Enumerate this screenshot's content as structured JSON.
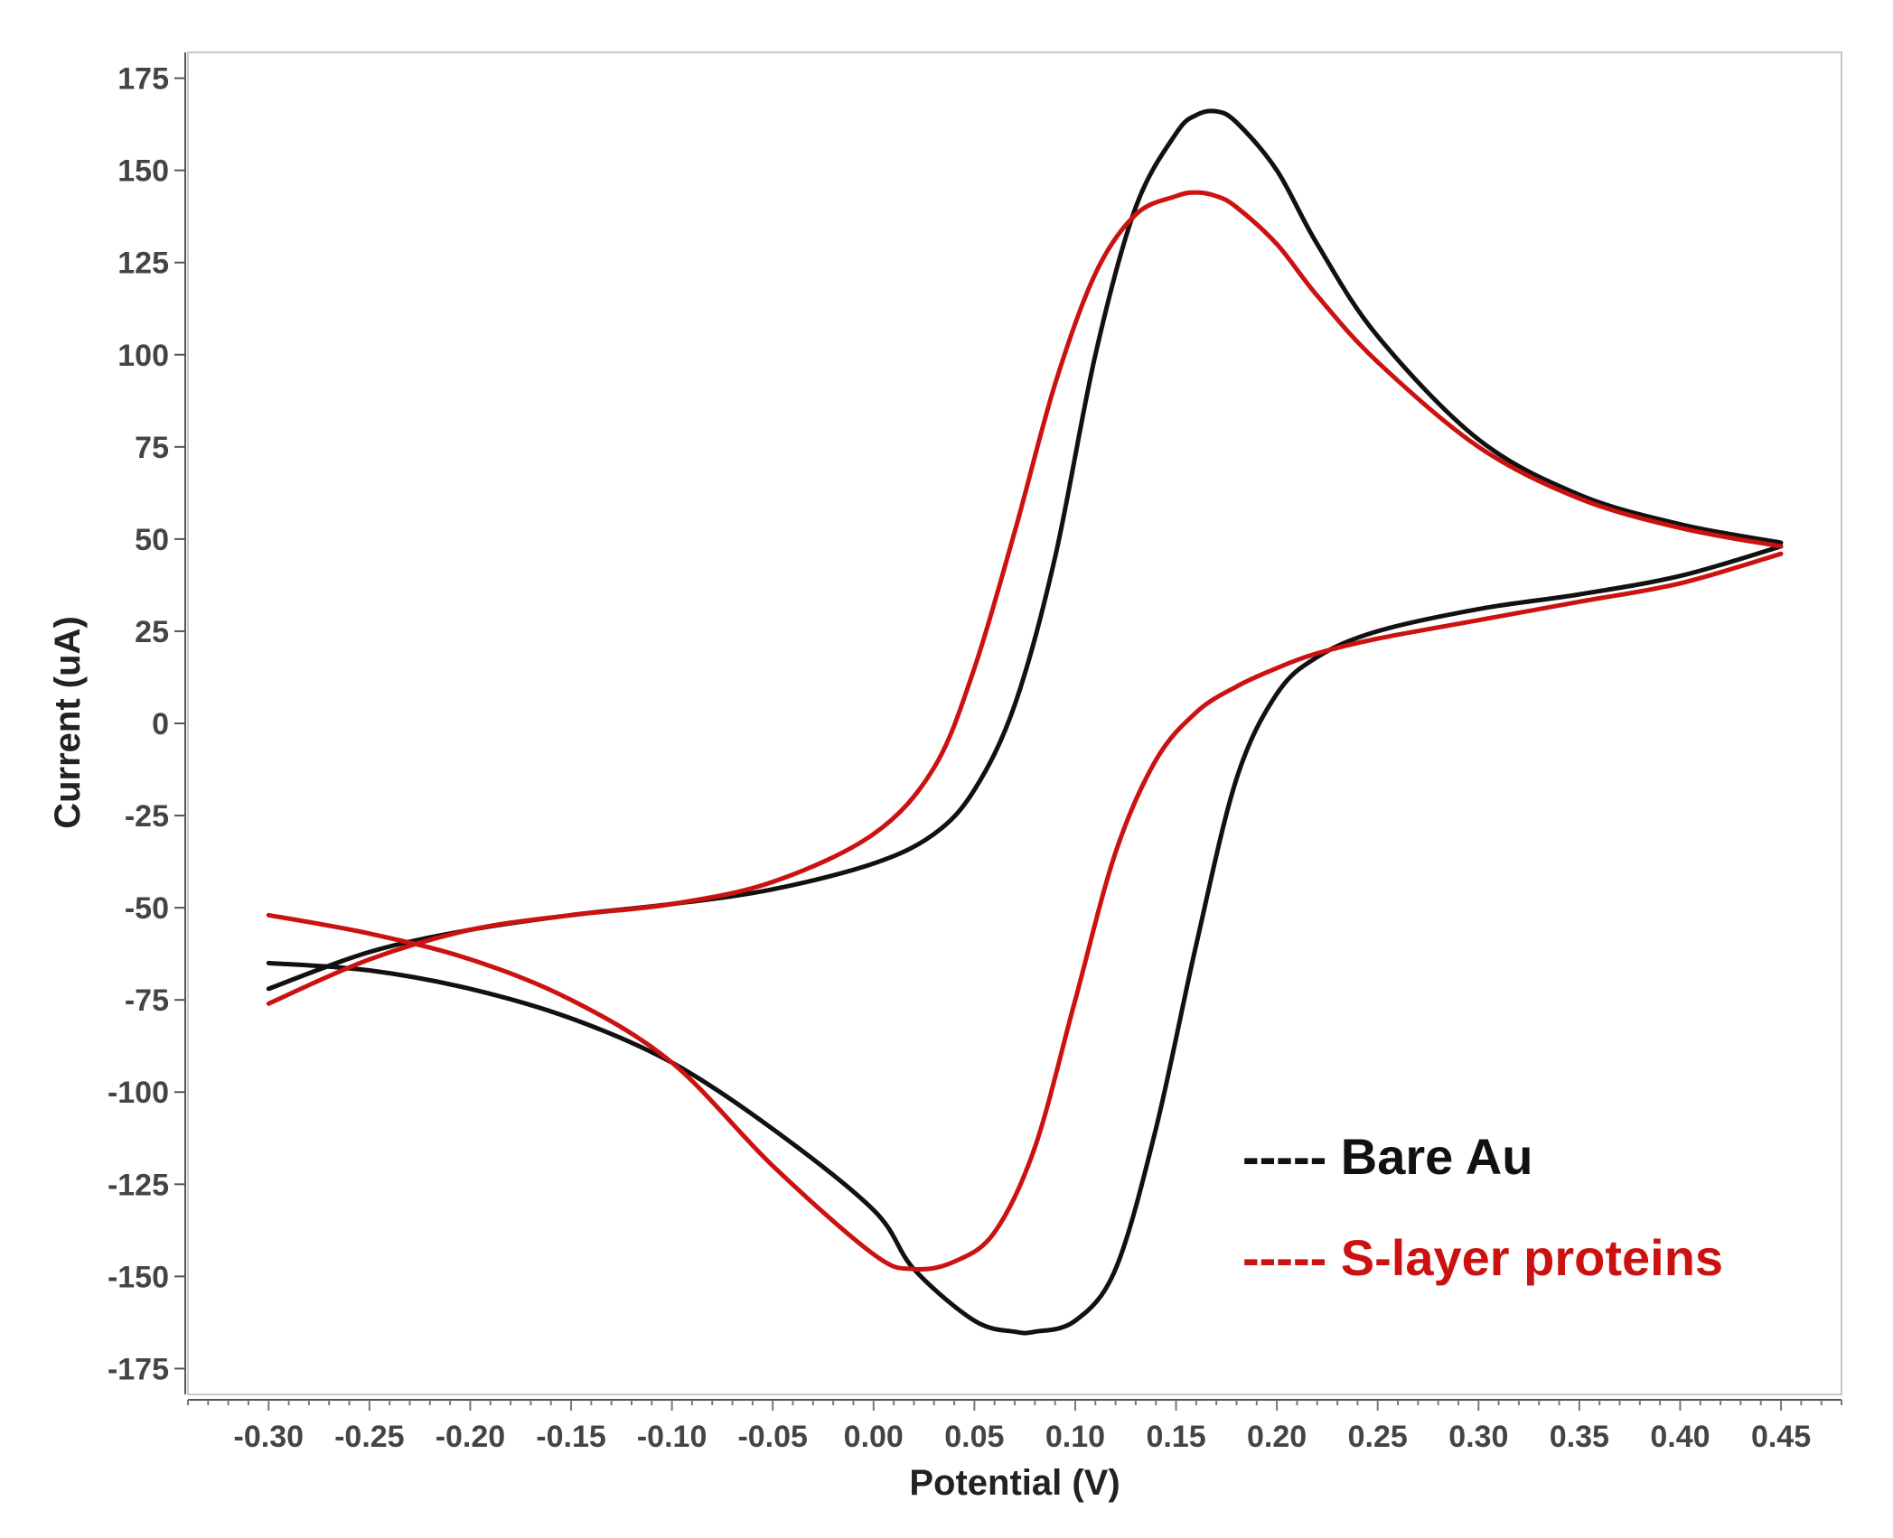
{
  "chart_data": {
    "type": "line",
    "title": "",
    "xlabel": "Potential (V)",
    "ylabel": "Current (uA)",
    "xlim": [
      -0.34,
      0.48
    ],
    "ylim": [
      -182,
      182
    ],
    "xticks": [
      "-0.30",
      "-0.25",
      "-0.20",
      "-0.15",
      "-0.10",
      "-0.05",
      "0.00",
      "0.05",
      "0.10",
      "0.15",
      "0.20",
      "0.25",
      "0.30",
      "0.35",
      "0.40",
      "0.45"
    ],
    "yticks": [
      "175",
      "150",
      "125",
      "100",
      "75",
      "50",
      "25",
      "0",
      "-25",
      "-50",
      "-75",
      "-100",
      "-125",
      "-150",
      "-175"
    ],
    "grid": false,
    "legend_position": "bottom-right",
    "series": [
      {
        "name": "Bare Au",
        "legend_label": "----- Bare Au",
        "color": "#111111",
        "forward": {
          "x": [
            -0.3,
            -0.25,
            -0.2,
            -0.15,
            -0.1,
            -0.05,
            0.0,
            0.03,
            0.05,
            0.07,
            0.09,
            0.11,
            0.13,
            0.15,
            0.16,
            0.17,
            0.18,
            0.2,
            0.22,
            0.25,
            0.3,
            0.35,
            0.4,
            0.45
          ],
          "y": [
            -72,
            -62,
            -56,
            -52,
            -49,
            -45,
            -38,
            -30,
            -18,
            5,
            45,
            100,
            140,
            160,
            165,
            166,
            163,
            150,
            130,
            105,
            77,
            62,
            54,
            49
          ]
        },
        "reverse": {
          "x": [
            0.45,
            0.4,
            0.35,
            0.3,
            0.25,
            0.22,
            0.2,
            0.18,
            0.16,
            0.14,
            0.12,
            0.1,
            0.08,
            0.07,
            0.05,
            0.02,
            0.0,
            -0.05,
            -0.1,
            -0.15,
            -0.2,
            -0.25,
            -0.3
          ],
          "y": [
            48,
            40,
            35,
            31,
            25,
            18,
            8,
            -15,
            -60,
            -110,
            -148,
            -162,
            -165,
            -165,
            -162,
            -148,
            -132,
            -110,
            -92,
            -80,
            -72,
            -67,
            -65
          ]
        }
      },
      {
        "name": "S-layer proteins",
        "legend_label": "----- S-layer proteins",
        "color": "#cc1111",
        "forward": {
          "x": [
            -0.3,
            -0.25,
            -0.2,
            -0.15,
            -0.1,
            -0.05,
            0.0,
            0.03,
            0.05,
            0.07,
            0.09,
            0.11,
            0.13,
            0.15,
            0.16,
            0.17,
            0.18,
            0.2,
            0.22,
            0.25,
            0.3,
            0.35,
            0.4,
            0.45
          ],
          "y": [
            -76,
            -64,
            -56,
            -52,
            -49,
            -43,
            -30,
            -12,
            15,
            52,
            92,
            122,
            138,
            143,
            144,
            143,
            140,
            130,
            116,
            98,
            75,
            61,
            53,
            48
          ]
        },
        "reverse": {
          "x": [
            0.45,
            0.4,
            0.35,
            0.3,
            0.25,
            0.22,
            0.2,
            0.18,
            0.16,
            0.14,
            0.12,
            0.1,
            0.08,
            0.06,
            0.04,
            0.02,
            0.0,
            -0.05,
            -0.1,
            -0.15,
            -0.2,
            -0.25,
            -0.3
          ],
          "y": [
            46,
            38,
            33,
            28,
            23,
            19,
            15,
            10,
            3,
            -10,
            -35,
            -75,
            -115,
            -138,
            -146,
            -148,
            -144,
            -120,
            -92,
            -75,
            -64,
            -57,
            -52
          ]
        }
      }
    ]
  }
}
